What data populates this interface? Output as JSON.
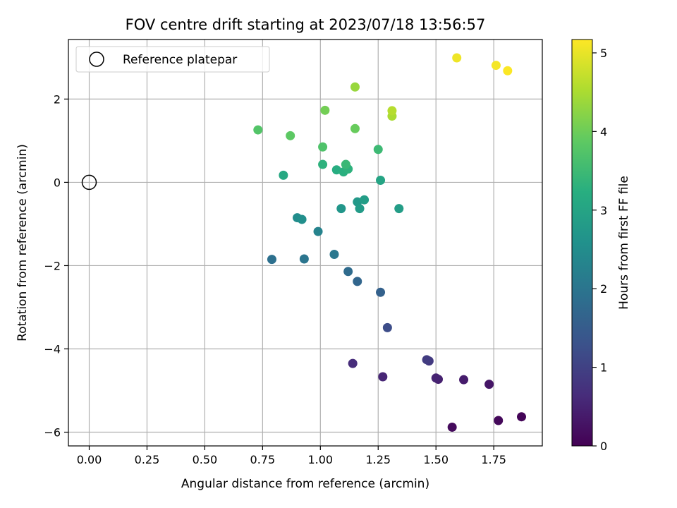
{
  "chart_data": {
    "type": "scatter",
    "title": "FOV centre drift starting at 2023/07/18 13:56:57",
    "xlabel": "Angular distance from reference (arcmin)",
    "ylabel": "Rotation from reference (arcmin)",
    "xlim": [
      -0.09,
      1.96
    ],
    "ylim": [
      -6.33,
      3.43
    ],
    "xticks": [
      0.0,
      0.25,
      0.5,
      0.75,
      1.0,
      1.25,
      1.5,
      1.75
    ],
    "xtick_labels": [
      "0.00",
      "0.25",
      "0.50",
      "0.75",
      "1.00",
      "1.25",
      "1.50",
      "1.75"
    ],
    "yticks": [
      -6,
      -4,
      -2,
      0,
      2
    ],
    "ytick_labels": [
      "−6",
      "−4",
      "−2",
      "0",
      "2"
    ],
    "grid": true,
    "legend": {
      "placement": "upper-left",
      "entries": [
        {
          "label": "Reference platepar",
          "marker": "open-circle",
          "color": "#000000"
        }
      ]
    },
    "colorbar": {
      "label": "Hours from first FF file",
      "colormap": "viridis",
      "range": [
        0,
        5.17
      ],
      "ticks": [
        0,
        1,
        2,
        3,
        4,
        5
      ],
      "tick_labels": [
        "0",
        "1",
        "2",
        "3",
        "4",
        "5"
      ]
    },
    "reference_point": {
      "x": 0.0,
      "y": 0.0
    },
    "series": [
      {
        "points": [
          {
            "x": 1.87,
            "y": -5.63,
            "c": 0.05
          },
          {
            "x": 1.77,
            "y": -5.72,
            "c": 0.1
          },
          {
            "x": 1.57,
            "y": -5.88,
            "c": 0.15
          },
          {
            "x": 1.73,
            "y": -4.85,
            "c": 0.3
          },
          {
            "x": 1.62,
            "y": -4.74,
            "c": 0.4
          },
          {
            "x": 1.51,
            "y": -4.73,
            "c": 0.45
          },
          {
            "x": 1.5,
            "y": -4.7,
            "c": 0.5
          },
          {
            "x": 1.27,
            "y": -4.67,
            "c": 0.55
          },
          {
            "x": 1.14,
            "y": -4.35,
            "c": 0.65
          },
          {
            "x": 1.47,
            "y": -4.29,
            "c": 0.85
          },
          {
            "x": 1.46,
            "y": -4.26,
            "c": 0.9
          },
          {
            "x": 1.29,
            "y": -3.49,
            "c": 1.2
          },
          {
            "x": 1.26,
            "y": -2.64,
            "c": 1.6
          },
          {
            "x": 1.16,
            "y": -2.38,
            "c": 1.7
          },
          {
            "x": 1.12,
            "y": -2.14,
            "c": 1.8
          },
          {
            "x": 0.79,
            "y": -1.85,
            "c": 1.9
          },
          {
            "x": 0.93,
            "y": -1.84,
            "c": 2.0
          },
          {
            "x": 1.06,
            "y": -1.73,
            "c": 2.05
          },
          {
            "x": 0.99,
            "y": -1.18,
            "c": 2.3
          },
          {
            "x": 0.9,
            "y": -0.85,
            "c": 2.5
          },
          {
            "x": 0.92,
            "y": -0.89,
            "c": 2.55
          },
          {
            "x": 1.09,
            "y": -0.63,
            "c": 2.7
          },
          {
            "x": 1.16,
            "y": -0.47,
            "c": 2.75
          },
          {
            "x": 1.17,
            "y": -0.63,
            "c": 2.8
          },
          {
            "x": 1.19,
            "y": -0.42,
            "c": 2.85
          },
          {
            "x": 1.34,
            "y": -0.63,
            "c": 2.85
          },
          {
            "x": 1.26,
            "y": 0.05,
            "c": 3.0
          },
          {
            "x": 0.84,
            "y": 0.17,
            "c": 3.1
          },
          {
            "x": 1.07,
            "y": 0.3,
            "c": 3.2
          },
          {
            "x": 1.1,
            "y": 0.25,
            "c": 3.25
          },
          {
            "x": 1.12,
            "y": 0.32,
            "c": 3.3
          },
          {
            "x": 1.01,
            "y": 0.43,
            "c": 3.3
          },
          {
            "x": 1.11,
            "y": 0.43,
            "c": 3.45
          },
          {
            "x": 1.25,
            "y": 0.79,
            "c": 3.5
          },
          {
            "x": 1.01,
            "y": 0.85,
            "c": 3.7
          },
          {
            "x": 0.73,
            "y": 1.26,
            "c": 3.75
          },
          {
            "x": 0.87,
            "y": 1.12,
            "c": 3.85
          },
          {
            "x": 1.15,
            "y": 1.29,
            "c": 3.95
          },
          {
            "x": 1.02,
            "y": 1.73,
            "c": 4.05
          },
          {
            "x": 1.15,
            "y": 2.29,
            "c": 4.35
          },
          {
            "x": 1.31,
            "y": 1.59,
            "c": 4.5
          },
          {
            "x": 1.31,
            "y": 1.72,
            "c": 4.6
          },
          {
            "x": 1.59,
            "y": 2.99,
            "c": 5.05
          },
          {
            "x": 1.76,
            "y": 2.81,
            "c": 5.1
          },
          {
            "x": 1.81,
            "y": 2.68,
            "c": 5.15
          }
        ]
      }
    ]
  }
}
